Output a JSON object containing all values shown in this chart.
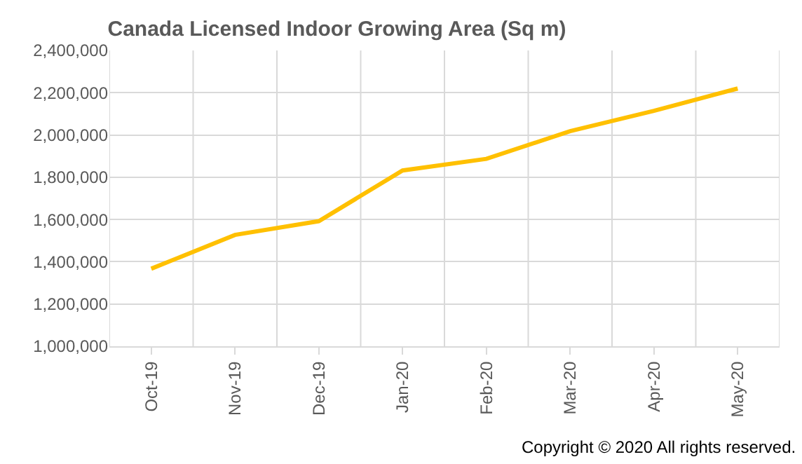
{
  "chart_data": {
    "type": "line",
    "title": "Canada Licensed Indoor Growing Area (Sq m)",
    "categories": [
      "Oct-19",
      "Nov-19",
      "Dec-19",
      "Jan-20",
      "Feb-20",
      "Mar-20",
      "Apr-20",
      "May-20"
    ],
    "series": [
      {
        "color": "#ffc000",
        "values": [
          1367000,
          1527000,
          1592000,
          1832000,
          1887000,
          2018000,
          2114000,
          2220000
        ]
      }
    ],
    "ylim": [
      1000000,
      2400000
    ],
    "yticks": [
      {
        "value": 1000000,
        "label": "1,000,000"
      },
      {
        "value": 1200000,
        "label": "1,200,000"
      },
      {
        "value": 1400000,
        "label": "1,400,000"
      },
      {
        "value": 1600000,
        "label": "1,600,000"
      },
      {
        "value": 1800000,
        "label": "1,800,000"
      },
      {
        "value": 2000000,
        "label": "2,000,000"
      },
      {
        "value": 2200000,
        "label": "2,200,000"
      },
      {
        "value": 2400000,
        "label": "2,400,000"
      }
    ],
    "grid": true,
    "marker": "none",
    "line_style": "solid",
    "annotations": [
      "Copyright © 2020 All rights reserved."
    ]
  }
}
